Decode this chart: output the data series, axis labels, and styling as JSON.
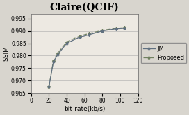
{
  "title": "Claire(QCIF)",
  "xlabel": "bit-rate(kb/s)",
  "ylabel": "SSIM",
  "xlim": [
    0,
    120
  ],
  "ylim": [
    0.965,
    0.997
  ],
  "yticks": [
    0.965,
    0.97,
    0.975,
    0.98,
    0.985,
    0.99,
    0.995
  ],
  "xticks": [
    0,
    20,
    40,
    60,
    80,
    100,
    120
  ],
  "jm_x": [
    20,
    25,
    30,
    40,
    55,
    65,
    80,
    95,
    105
  ],
  "jm_y": [
    0.9675,
    0.9775,
    0.9805,
    0.985,
    0.9875,
    0.9885,
    0.99,
    0.9908,
    0.991
  ],
  "proposed_x": [
    20,
    25,
    30,
    40,
    55,
    65,
    80,
    95,
    105
  ],
  "proposed_y": [
    0.9675,
    0.978,
    0.981,
    0.9855,
    0.988,
    0.989,
    0.9902,
    0.991,
    0.9913
  ],
  "jm_color": "#607080",
  "proposed_color": "#708060",
  "jm_label": "JM",
  "proposed_label": "Proposed",
  "title_fontsize": 10,
  "label_fontsize": 6.5,
  "tick_fontsize": 5.5,
  "legend_fontsize": 6,
  "fig_bg": "#d8d5ce",
  "ax_bg": "#ede9e2"
}
